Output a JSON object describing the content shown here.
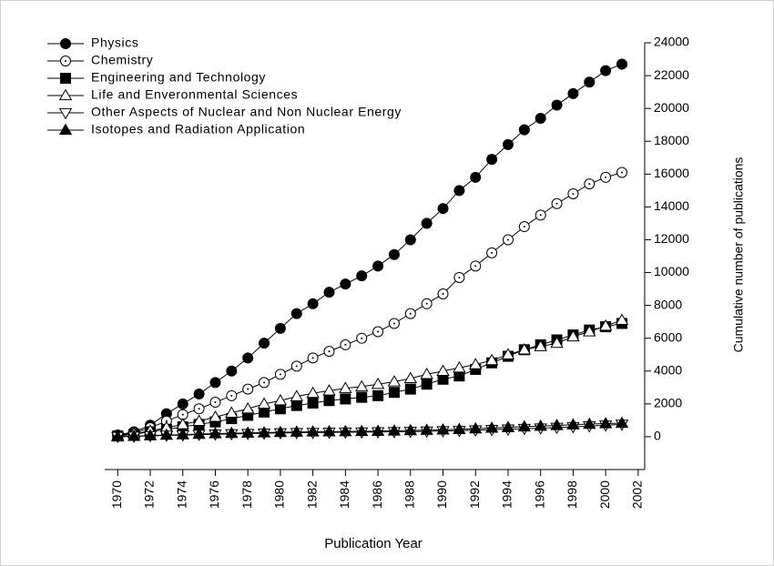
{
  "chart_data": {
    "type": "line",
    "x_label": "Publication Year",
    "y_label": "Cumulative number of publications",
    "x": [
      1970,
      1971,
      1972,
      1973,
      1974,
      1975,
      1976,
      1977,
      1978,
      1979,
      1980,
      1981,
      1982,
      1983,
      1984,
      1985,
      1986,
      1987,
      1988,
      1989,
      1990,
      1991,
      1992,
      1993,
      1994,
      1995,
      1996,
      1997,
      1998,
      1999,
      2000,
      2001
    ],
    "xlim": [
      1969.2,
      2002.4
    ],
    "xticks": [
      1970,
      1972,
      1974,
      1976,
      1978,
      1980,
      1982,
      1984,
      1986,
      1988,
      1990,
      1992,
      1994,
      1996,
      1998,
      2000,
      2002
    ],
    "ylim": [
      -2000,
      24000
    ],
    "yticks": [
      0,
      2000,
      4000,
      6000,
      8000,
      10000,
      12000,
      14000,
      16000,
      18000,
      20000,
      22000,
      24000
    ],
    "legend": "upper left",
    "series": [
      {
        "name": "Physics",
        "color": "#000000",
        "marker": "circle",
        "fill": "#000000",
        "values": [
          100,
          300,
          700,
          1400,
          2000,
          2600,
          3300,
          4000,
          4800,
          5700,
          6600,
          7500,
          8100,
          8800,
          9300,
          9800,
          10400,
          11100,
          12000,
          13000,
          13900,
          15000,
          15800,
          16900,
          17800,
          18700,
          19400,
          20200,
          20900,
          21600,
          22300,
          22700
        ]
      },
      {
        "name": "Chemistry",
        "color": "#000000",
        "marker": "dotcircle",
        "fill": "#ffffff",
        "values": [
          100,
          250,
          550,
          950,
          1350,
          1700,
          2100,
          2500,
          2900,
          3300,
          3800,
          4300,
          4800,
          5200,
          5600,
          6000,
          6400,
          6900,
          7500,
          8100,
          8700,
          9700,
          10400,
          11200,
          12000,
          12800,
          13500,
          14200,
          14800,
          15400,
          15800,
          16100
        ]
      },
      {
        "name": "Engineering and Technology",
        "color": "#000000",
        "marker": "square",
        "fill": "#000000",
        "values": [
          50,
          150,
          300,
          450,
          600,
          750,
          900,
          1100,
          1300,
          1500,
          1700,
          1900,
          2050,
          2200,
          2300,
          2400,
          2500,
          2700,
          2900,
          3200,
          3500,
          3700,
          4100,
          4500,
          4900,
          5300,
          5600,
          5900,
          6200,
          6500,
          6700,
          6900
        ]
      },
      {
        "name": "Life and Enveronmental Sciences",
        "color": "#000000",
        "marker": "triangle-up",
        "fill": "#ffffff",
        "values": [
          50,
          200,
          350,
          550,
          750,
          950,
          1200,
          1450,
          1700,
          2000,
          2200,
          2450,
          2650,
          2800,
          2950,
          3050,
          3200,
          3350,
          3550,
          3800,
          4000,
          4200,
          4400,
          4650,
          5000,
          5300,
          5500,
          5700,
          6100,
          6400,
          6750,
          7100
        ]
      },
      {
        "name": "Other Aspects of Nuclear and Non Nuclear Energy",
        "color": "#000000",
        "marker": "triangle-down",
        "fill": "#ffffff",
        "values": [
          0,
          20,
          50,
          80,
          100,
          130,
          150,
          170,
          190,
          210,
          230,
          240,
          250,
          260,
          270,
          280,
          290,
          300,
          310,
          330,
          350,
          370,
          400,
          430,
          460,
          490,
          520,
          560,
          600,
          650,
          700,
          750
        ]
      },
      {
        "name": "Isotopes and Radiation Application",
        "color": "#000000",
        "marker": "triangle-up",
        "fill": "#000000",
        "values": [
          0,
          30,
          70,
          100,
          130,
          160,
          190,
          210,
          230,
          250,
          270,
          290,
          300,
          310,
          320,
          330,
          340,
          360,
          380,
          400,
          420,
          450,
          490,
          530,
          570,
          610,
          650,
          690,
          730,
          770,
          800,
          830
        ]
      }
    ]
  }
}
